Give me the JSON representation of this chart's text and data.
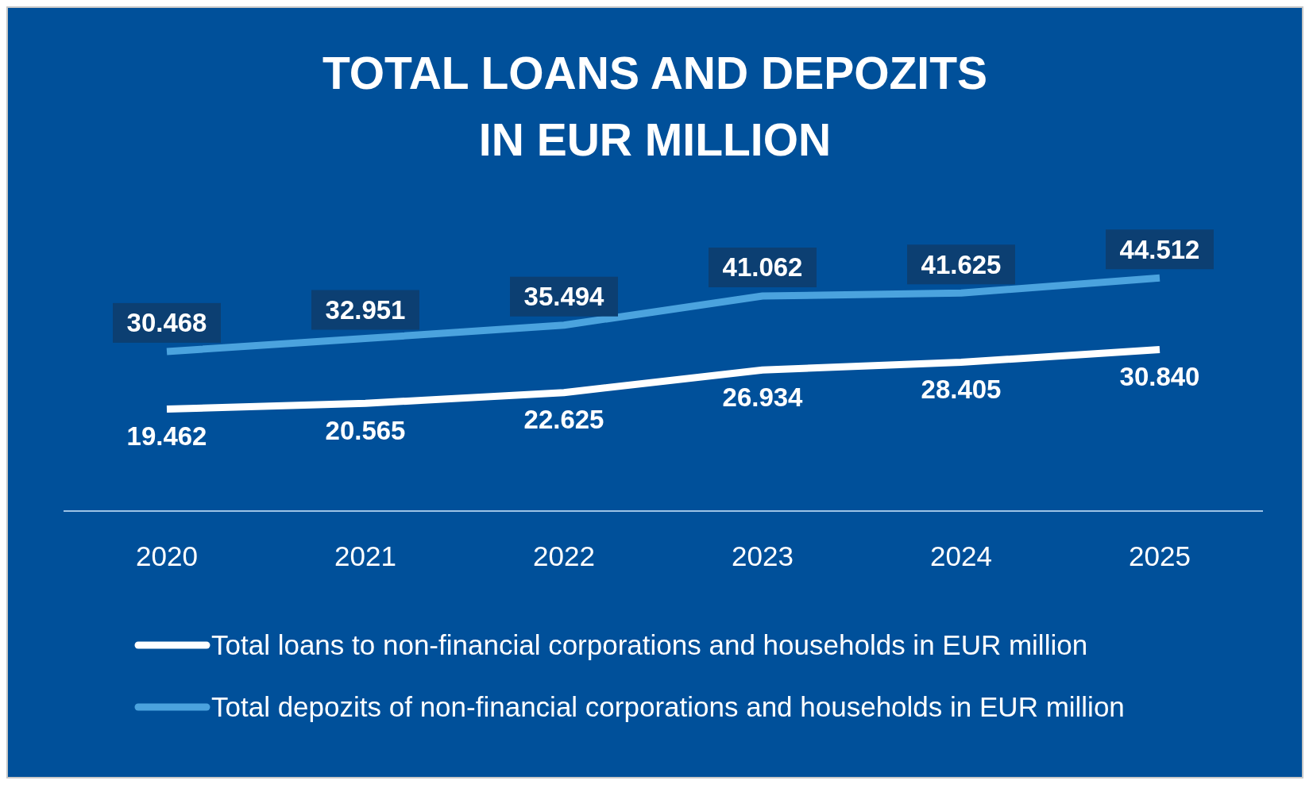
{
  "chart_data": {
    "type": "line",
    "title": "TOTAL LOANS AND DEPOZITS\nIN EUR MILLION",
    "categories": [
      "2020",
      "2021",
      "2022",
      "2023",
      "2024",
      "2025"
    ],
    "series": [
      {
        "name": "Total loans to non-financial corporations and households in EUR million",
        "color": "#ffffff",
        "values": [
          19462,
          20565,
          22625,
          26934,
          28405,
          30840
        ],
        "value_labels": [
          "19.462",
          "20.565",
          "22.625",
          "26.934",
          "28.405",
          "30.840"
        ]
      },
      {
        "name": "Total depozits of non-financial corporations and households in EUR million",
        "color": "#4ba3de",
        "values": [
          30468,
          32951,
          35494,
          41062,
          41625,
          44512
        ],
        "value_labels": [
          "30.468",
          "32.951",
          "35.494",
          "41.062",
          "41.625",
          "44.512"
        ]
      }
    ],
    "legend": "bottom",
    "grid": false,
    "marker": "none",
    "line_style": "solid"
  }
}
